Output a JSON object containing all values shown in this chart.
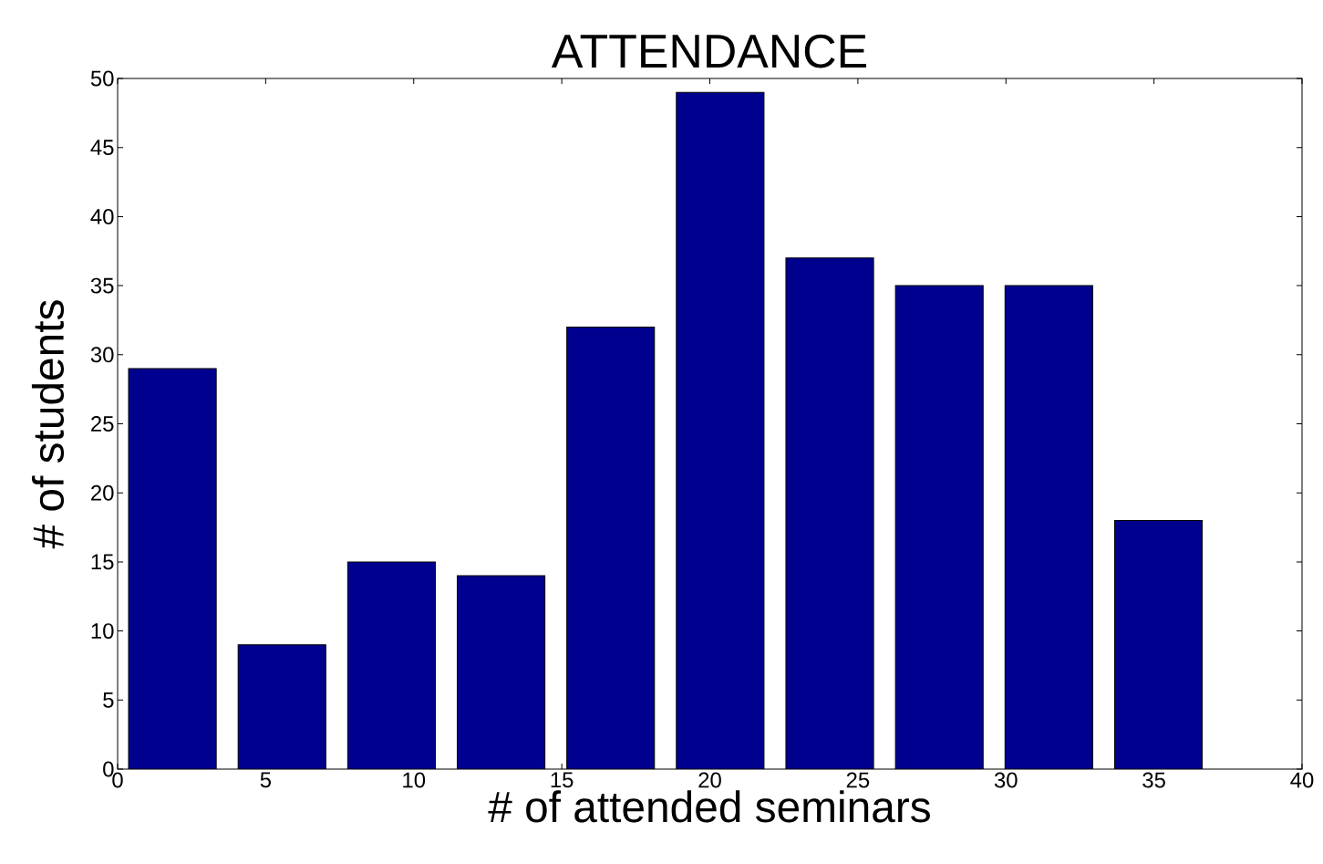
{
  "chart_data": {
    "type": "histogram",
    "title": "ATTENDANCE",
    "xlabel": "# of attended seminars",
    "ylabel": "# of students",
    "bins": [
      0,
      3.7,
      7.4,
      11.1,
      14.8,
      18.5,
      22.2,
      25.9,
      29.6,
      33.3,
      37
    ],
    "values": [
      29,
      9,
      15,
      14,
      32,
      49,
      37,
      35,
      35,
      18
    ],
    "color": "#00008f",
    "xlim": [
      0,
      40
    ],
    "ylim": [
      0,
      50
    ],
    "xticks": [
      0,
      5,
      10,
      15,
      20,
      25,
      30,
      35,
      40
    ],
    "yticks": [
      0,
      5,
      10,
      15,
      20,
      25,
      30,
      35,
      40,
      45,
      50
    ]
  }
}
